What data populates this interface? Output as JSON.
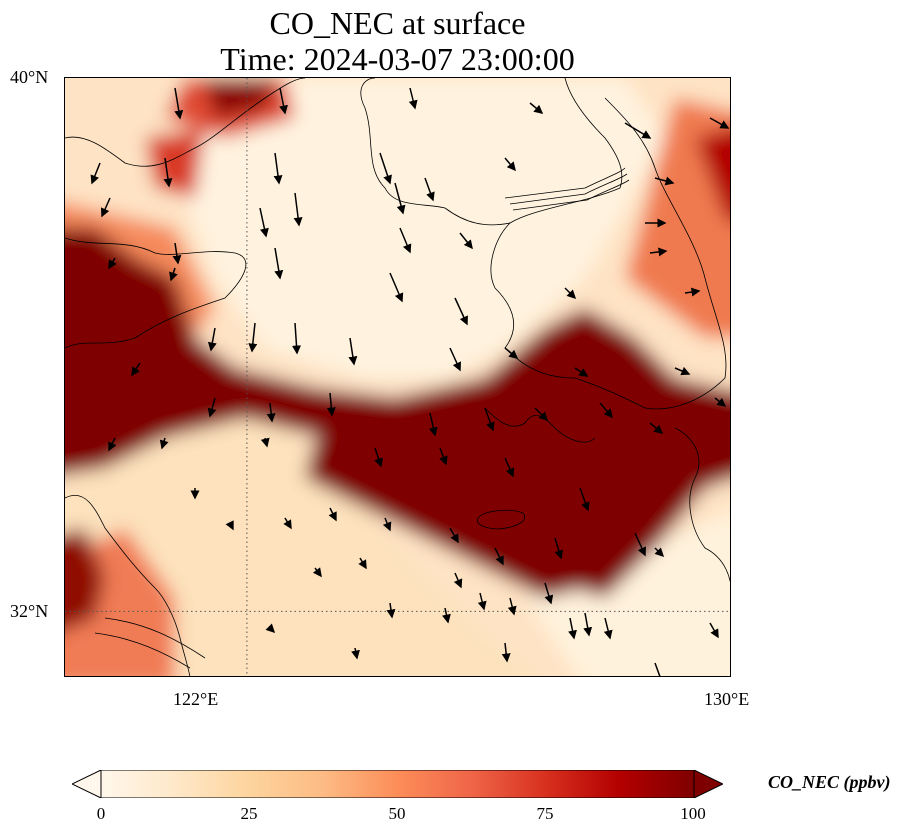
{
  "title_line1": "CO_NEC at surface",
  "title_line2": "Time: 2024-03-07 23:00:00",
  "map": {
    "lon_range": [
      119.0,
      130.0
    ],
    "lat_range": [
      31.0,
      40.0
    ],
    "lat_ticks": [
      {
        "value": 40,
        "label": "40°N"
      },
      {
        "value": 32,
        "label": "32°N"
      }
    ],
    "lon_ticks": [
      {
        "value": 122,
        "label": "122°E"
      },
      {
        "value": 130,
        "label": "130°E"
      }
    ],
    "gridlines": {
      "style": "dotted",
      "lons": [
        122
      ],
      "lats": [
        32
      ]
    },
    "field": "CO_NEC",
    "overlay": "wind vectors"
  },
  "colorbar": {
    "label": "CO_NEC (ppbv)",
    "min": 0,
    "max": 100,
    "ticks": [
      "0",
      "25",
      "50",
      "75",
      "100"
    ],
    "colormap": "OrRd",
    "extend": "both",
    "colors": [
      "#fff7ec",
      "#fee8c8",
      "#fdd49e",
      "#fdbb84",
      "#fc8d59",
      "#ef6548",
      "#d7301f",
      "#b30000",
      "#7f0000"
    ]
  }
}
